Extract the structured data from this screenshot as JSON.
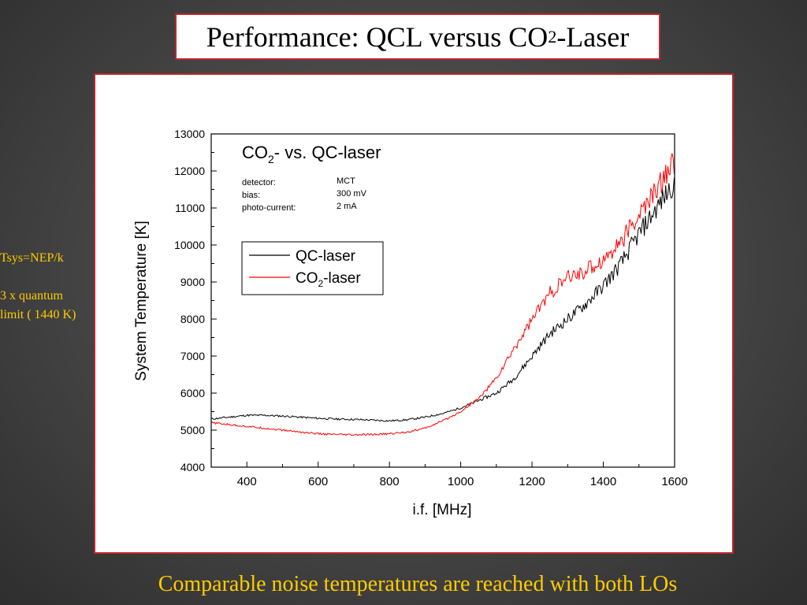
{
  "slide": {
    "title_main": "Performance: QCL versus CO",
    "title_sub": "2",
    "title_end": "-Laser",
    "note_line1": "Tsys=NEP/k",
    "note_line2": "3 x quantum",
    "note_line3": "limit ( 1440 K)",
    "caption": "Comparable noise temperatures are reached with both LOs"
  },
  "chart_data": {
    "type": "line",
    "title_pre": "CO",
    "title_sub": "2",
    "title_post": "- vs. QC-laser",
    "xlabel": "i.f. [MHz]",
    "ylabel": "System Temperature [K]",
    "xlim": [
      300,
      1600
    ],
    "ylim": [
      4000,
      13000
    ],
    "xticks": [
      "400",
      "600",
      "800",
      "1000",
      "1200",
      "1400",
      "1600"
    ],
    "yticks": [
      "4000",
      "5000",
      "6000",
      "7000",
      "8000",
      "9000",
      "10000",
      "11000",
      "12000",
      "13000"
    ],
    "params": [
      {
        "label": "detector:",
        "value": "MCT"
      },
      {
        "label": "bias:",
        "value": "300 mV"
      },
      {
        "label": "photo-current:",
        "value": "2 mA"
      }
    ],
    "legend_position": "upper-middle",
    "series": [
      {
        "name": "QC-laser",
        "legend_pre": "QC-laser",
        "legend_sub": "",
        "legend_post": "",
        "color": "#000000",
        "x": [
          300,
          350,
          400,
          450,
          500,
          550,
          600,
          650,
          700,
          750,
          800,
          850,
          900,
          950,
          1000,
          1050,
          1100,
          1150,
          1200,
          1250,
          1300,
          1350,
          1400,
          1450,
          1500,
          1550,
          1600
        ],
        "y": [
          5300,
          5350,
          5400,
          5400,
          5380,
          5350,
          5320,
          5300,
          5290,
          5270,
          5250,
          5280,
          5350,
          5450,
          5600,
          5800,
          6000,
          6400,
          7000,
          7600,
          8000,
          8400,
          8900,
          9500,
          10300,
          11000,
          11700
        ]
      },
      {
        "name": "CO2-laser",
        "legend_pre": "CO",
        "legend_sub": "2",
        "legend_post": "-laser",
        "color": "#ff0000",
        "x": [
          300,
          350,
          400,
          450,
          500,
          550,
          600,
          650,
          700,
          750,
          800,
          850,
          900,
          950,
          1000,
          1050,
          1100,
          1150,
          1200,
          1250,
          1300,
          1350,
          1400,
          1450,
          1500,
          1550,
          1600
        ],
        "y": [
          5200,
          5150,
          5100,
          5050,
          5000,
          4950,
          4900,
          4880,
          4870,
          4880,
          4900,
          4950,
          5050,
          5250,
          5500,
          5850,
          6400,
          7200,
          8000,
          8700,
          9100,
          9300,
          9600,
          10100,
          10800,
          11500,
          12300
        ]
      }
    ]
  }
}
